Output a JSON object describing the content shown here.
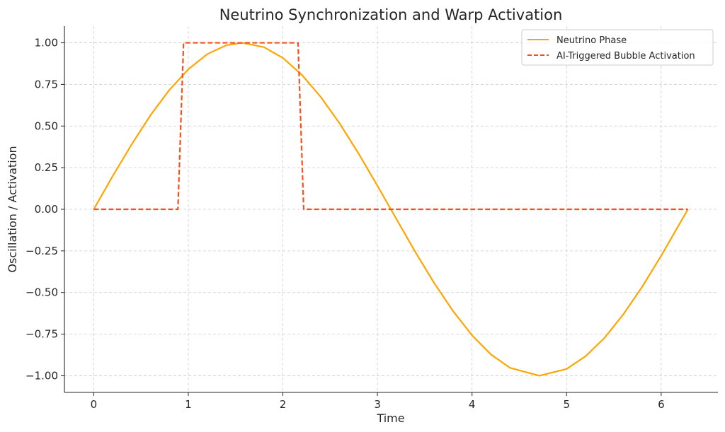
{
  "chart_data": {
    "type": "line",
    "title": "Neutrino Synchronization and Warp Activation",
    "xlabel": "Time",
    "ylabel": "Oscillation / Activation",
    "xlim": [
      -0.31,
      6.6
    ],
    "ylim": [
      -1.1,
      1.1
    ],
    "xticks": [
      0,
      1,
      2,
      3,
      4,
      5,
      6
    ],
    "xtick_labels": [
      "0",
      "1",
      "2",
      "3",
      "4",
      "5",
      "6"
    ],
    "yticks": [
      1.0,
      0.75,
      0.5,
      0.25,
      0.0,
      -0.25,
      -0.5,
      -0.75,
      -1.0
    ],
    "ytick_labels": [
      "1.00",
      "0.75",
      "0.50",
      "0.25",
      "0.00",
      "−0.25",
      "−0.50",
      "−0.75",
      "−1.00"
    ],
    "grid": true,
    "legend_position": "top-right",
    "series": [
      {
        "name": "Neutrino Phase",
        "color": "#ffa500",
        "style": "solid",
        "x": [
          0,
          0.2,
          0.4,
          0.6,
          0.8,
          1.0,
          1.2,
          1.4,
          1.5708,
          1.8,
          2.0,
          2.2,
          2.4,
          2.6,
          2.8,
          3.0,
          3.1416,
          3.4,
          3.6,
          3.8,
          4.0,
          4.2,
          4.4,
          4.7124,
          5.0,
          5.2,
          5.4,
          5.6,
          5.8,
          6.0,
          6.2832
        ],
        "y": [
          0,
          0.199,
          0.389,
          0.565,
          0.717,
          0.841,
          0.932,
          0.985,
          1.0,
          0.974,
          0.909,
          0.808,
          0.675,
          0.516,
          0.335,
          0.141,
          0,
          -0.256,
          -0.443,
          -0.612,
          -0.757,
          -0.872,
          -0.952,
          -1.0,
          -0.959,
          -0.883,
          -0.773,
          -0.631,
          -0.465,
          -0.279,
          0
        ]
      },
      {
        "name": "AI-Triggered Bubble Activation",
        "color": "#f4511e",
        "style": "dashed",
        "x": [
          0,
          0.89,
          0.95,
          2.16,
          2.22,
          6.2832
        ],
        "y": [
          0,
          0,
          1,
          1,
          0,
          0
        ]
      }
    ]
  }
}
